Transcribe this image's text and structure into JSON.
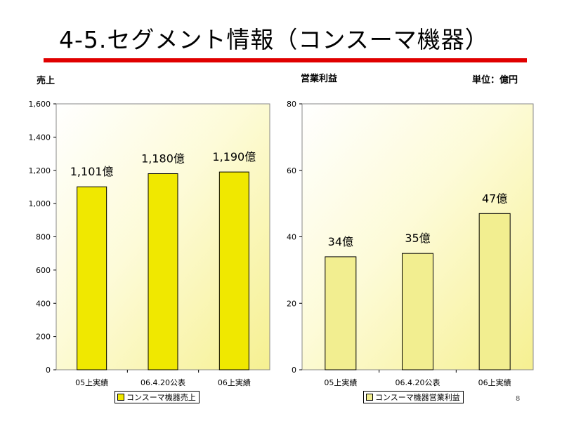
{
  "title": "4-5.セグメント情報（コンスーマ機器）",
  "accent_color": "#e00000",
  "page_number": "8",
  "unit_label": "単位：億円",
  "chart_data": [
    {
      "type": "bar",
      "title": "売上",
      "categories": [
        "05上実績",
        "06.4.20公表",
        "06上実績"
      ],
      "series": [
        {
          "name": "コンスーマ機器売上",
          "values": [
            1101,
            1180,
            1190
          ],
          "data_labels": [
            "1,101億",
            "1,180億",
            "1,190億"
          ],
          "color": "#f0e800"
        }
      ],
      "ylim": [
        0,
        1600
      ],
      "yticks": [
        "0",
        "200",
        "400",
        "600",
        "800",
        "1,000",
        "1,200",
        "1,400",
        "1,600"
      ],
      "ytick_values": [
        0,
        200,
        400,
        600,
        800,
        1000,
        1200,
        1400,
        1600
      ],
      "legend": "bottom",
      "grid": false
    },
    {
      "type": "bar",
      "title": "営業利益",
      "categories": [
        "05上実績",
        "06.4.20公表",
        "06上実績"
      ],
      "series": [
        {
          "name": "コンスーマ機器営業利益",
          "values": [
            34,
            35,
            47
          ],
          "data_labels": [
            "34億",
            "35億",
            "47億"
          ],
          "color": "#f2ee90"
        }
      ],
      "ylim": [
        0,
        80
      ],
      "yticks": [
        "0",
        "20",
        "40",
        "60",
        "80"
      ],
      "ytick_values": [
        0,
        20,
        40,
        60,
        80
      ],
      "legend": "bottom",
      "grid": false
    }
  ]
}
